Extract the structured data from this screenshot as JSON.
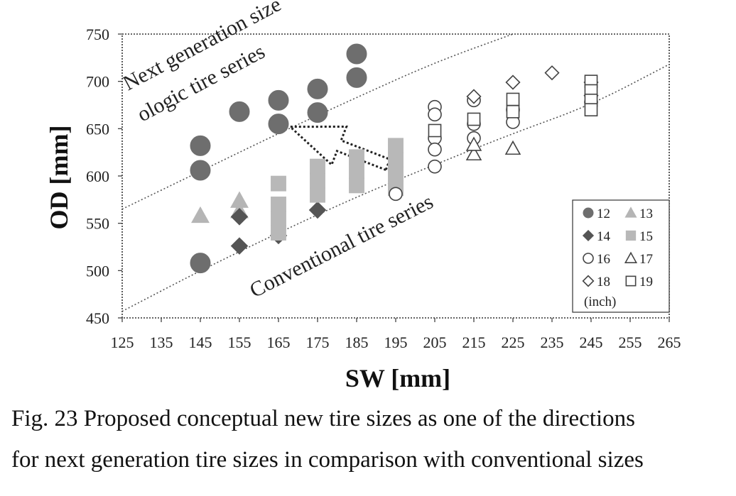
{
  "chart_data": {
    "type": "scatter",
    "xlabel": "SW  [mm]",
    "ylabel": "OD  [mm]",
    "xlim": [
      125,
      265
    ],
    "ylim": [
      450,
      750
    ],
    "xticks": [
      125,
      135,
      145,
      155,
      165,
      175,
      185,
      195,
      205,
      215,
      225,
      235,
      245,
      255,
      265
    ],
    "yticks": [
      450,
      500,
      550,
      600,
      650,
      700,
      750
    ],
    "grid": false,
    "legend_position": "bottom-right",
    "legend_note": "(inch)",
    "series": [
      {
        "name": "12",
        "marker": "filled-circle",
        "color": "#6e6e6e",
        "points": [
          [
            145,
            632
          ],
          [
            145,
            606
          ],
          [
            145,
            508
          ],
          [
            155,
            668
          ],
          [
            165,
            680
          ],
          [
            165,
            655
          ],
          [
            175,
            692
          ],
          [
            175,
            667
          ],
          [
            185,
            729
          ],
          [
            185,
            704
          ]
        ]
      },
      {
        "name": "13",
        "marker": "filled-triangle",
        "color": "#b5b5b5",
        "points": [
          [
            145,
            558
          ],
          [
            155,
            574
          ],
          [
            155,
            563
          ]
        ]
      },
      {
        "name": "14",
        "marker": "filled-diamond",
        "color": "#555555",
        "points": [
          [
            155,
            557
          ],
          [
            155,
            526
          ],
          [
            165,
            537
          ],
          [
            175,
            564
          ]
        ]
      },
      {
        "name": "15",
        "marker": "filled-square",
        "color": "#b8b8b8",
        "points": [
          [
            165,
            592
          ],
          [
            165,
            570
          ],
          [
            165,
            555
          ],
          [
            165,
            540
          ],
          [
            175,
            610
          ],
          [
            175,
            595
          ],
          [
            175,
            580
          ],
          [
            185,
            620
          ],
          [
            185,
            605
          ],
          [
            185,
            590
          ],
          [
            195,
            632
          ],
          [
            195,
            617
          ],
          [
            195,
            602
          ],
          [
            195,
            587
          ]
        ]
      },
      {
        "name": "16",
        "marker": "open-circle",
        "color": "#444444",
        "points": [
          [
            195,
            581
          ],
          [
            205,
            673
          ],
          [
            205,
            665
          ],
          [
            205,
            640
          ],
          [
            205,
            628
          ],
          [
            205,
            610
          ],
          [
            215,
            680
          ],
          [
            215,
            655
          ],
          [
            215,
            640
          ],
          [
            225,
            670
          ],
          [
            225,
            657
          ],
          [
            245,
            678
          ]
        ]
      },
      {
        "name": "17",
        "marker": "open-triangle",
        "color": "#444444",
        "points": [
          [
            215,
            623
          ],
          [
            215,
            633
          ],
          [
            225,
            629
          ]
        ]
      },
      {
        "name": "18",
        "marker": "open-diamond",
        "color": "#444444",
        "points": [
          [
            215,
            684
          ],
          [
            225,
            699
          ],
          [
            235,
            709
          ],
          [
            245,
            699
          ],
          [
            245,
            685
          ]
        ]
      },
      {
        "name": "19",
        "marker": "open-square",
        "color": "#444444",
        "points": [
          [
            205,
            648
          ],
          [
            215,
            660
          ],
          [
            225,
            681
          ],
          [
            225,
            668
          ],
          [
            245,
            700
          ],
          [
            245,
            690
          ],
          [
            245,
            680
          ],
          [
            245,
            670
          ]
        ]
      }
    ],
    "curves": [
      {
        "name": "Next generation size ologic tire series",
        "style": "dotted",
        "x": [
          125,
          145,
          165,
          185,
          205,
          225
        ],
        "y": [
          565,
          605,
          645,
          683,
          720,
          750
        ]
      },
      {
        "name": "Conventional tire series",
        "style": "dotted",
        "x": [
          125,
          145,
          165,
          185,
          205,
          225,
          245,
          265
        ],
        "y": [
          457,
          500,
          540,
          578,
          612,
          645,
          675,
          718
        ]
      }
    ],
    "annotations": {
      "next_gen_label": "Next generation size",
      "next_gen_label_2": "ologic tire series",
      "conventional_label": "Conventional tire series",
      "arrow_from": [
        193,
        612
      ],
      "arrow_to": [
        168,
        652
      ]
    }
  },
  "caption": {
    "line1": "Fig. 23 Proposed conceptual new tire sizes as one of the directions",
    "line2": "for next generation tire sizes in comparison with conventional sizes"
  }
}
